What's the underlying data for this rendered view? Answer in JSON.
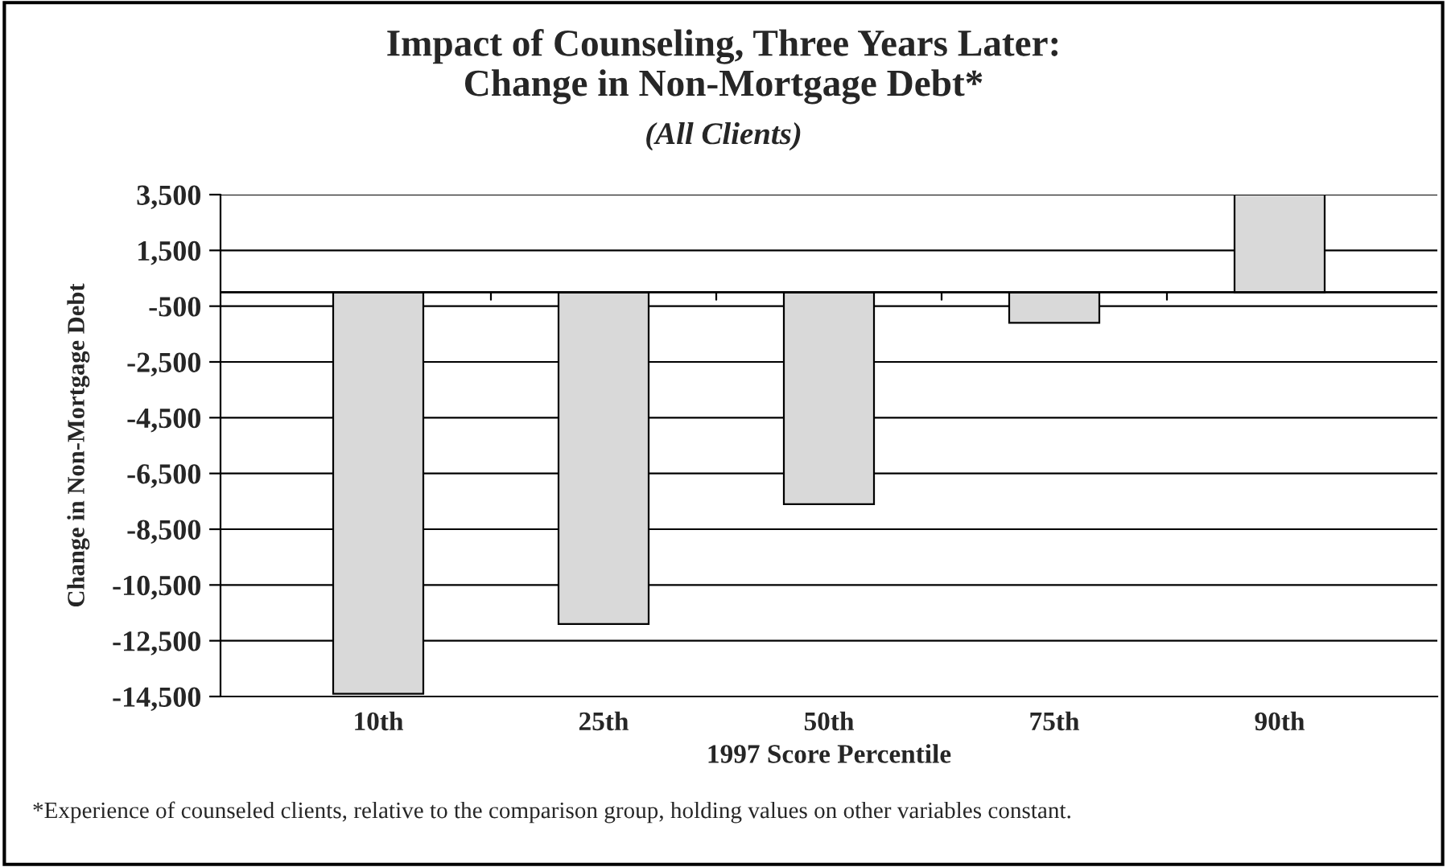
{
  "chart_data": {
    "type": "bar",
    "title": "Impact of Counseling, Three Years Later:\nChange in Non-Mortgage Debt*",
    "subtitle": "(All Clients)",
    "xlabel": "1997 Score Percentile",
    "ylabel": "Change in Non-Mortgage Debt",
    "categories": [
      "10th",
      "25th",
      "50th",
      "75th",
      "90th"
    ],
    "values": [
      -14400,
      -11900,
      -7600,
      -1100,
      3500
    ],
    "color": "#d9d9d9",
    "ylim": [
      -14500,
      3500
    ],
    "yticks": [
      {
        "value": 3500,
        "label": "3,500"
      },
      {
        "value": 1500,
        "label": "1,500"
      },
      {
        "value": -500,
        "label": "-500"
      },
      {
        "value": -2500,
        "label": "-2,500"
      },
      {
        "value": -4500,
        "label": "-4,500"
      },
      {
        "value": -6500,
        "label": "-6,500"
      },
      {
        "value": -8500,
        "label": "-8,500"
      },
      {
        "value": -10500,
        "label": "-10,500"
      },
      {
        "value": -12500,
        "label": "-12,500"
      },
      {
        "value": -14500,
        "label": "-14,500"
      }
    ],
    "grid": "y",
    "legend": false,
    "annotations": [
      "*Experience of counseled clients, relative to the comparison group, holding values on other variables constant."
    ]
  }
}
